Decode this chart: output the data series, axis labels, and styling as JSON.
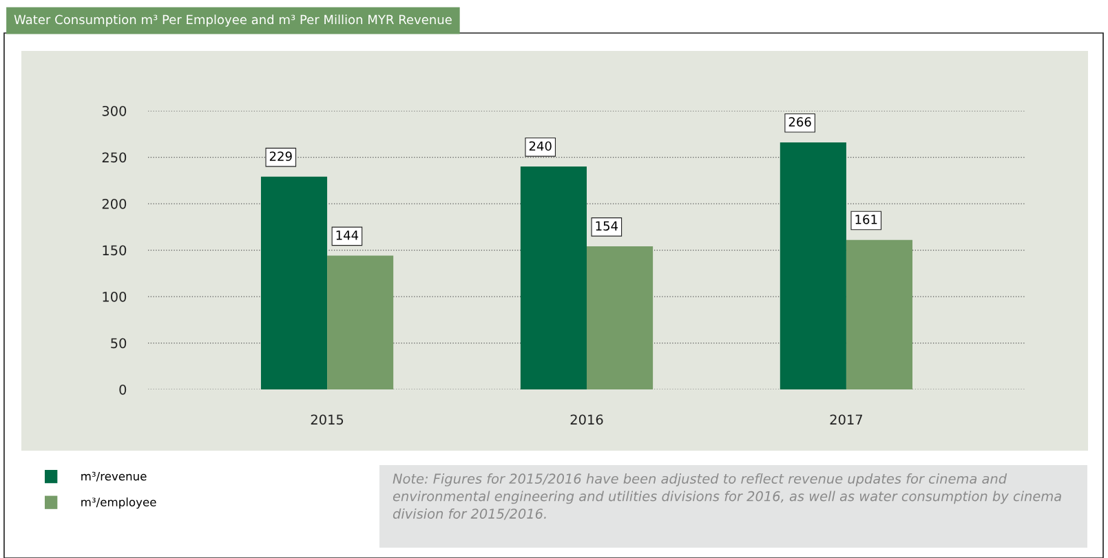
{
  "chart_data": {
    "type": "bar",
    "title": "Water Consumption m³ Per Employee and m³ Per Million MYR Revenue",
    "categories": [
      "2015",
      "2016",
      "2017"
    ],
    "series": [
      {
        "name": "m³/revenue",
        "color": "#006a45",
        "values": [
          229,
          240,
          266
        ]
      },
      {
        "name": "m³/employee",
        "color": "#769c68",
        "values": [
          144,
          154,
          161
        ]
      }
    ],
    "ylim": [
      0,
      300
    ],
    "yticks": [
      0,
      50,
      100,
      150,
      200,
      250,
      300
    ],
    "grid": "y",
    "legend": "bottom left",
    "data_labels": true,
    "annotations": [
      "Note: Figures for 2015/2016 have been adjusted to reflect revenue updates for cinema and environmental engineering and utilities divisions for 2016, as well as water consumption by cinema division for 2015/2016."
    ]
  }
}
